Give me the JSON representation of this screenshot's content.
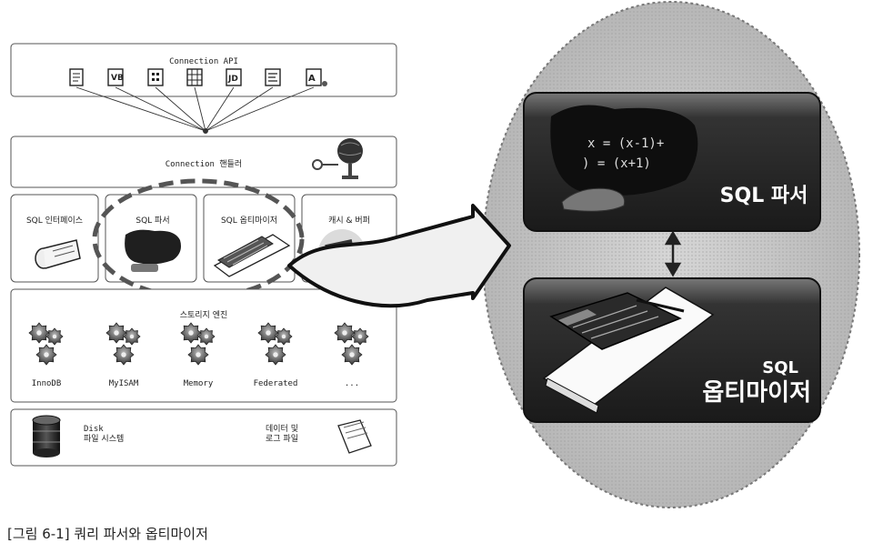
{
  "architecture": {
    "connection_api": {
      "title": "Connection API",
      "clients": [
        "document-icon",
        "vb-icon",
        "building-icon",
        "grid-icon",
        "jdbc-icon",
        "script-icon",
        "app-icon"
      ]
    },
    "connection_handler": {
      "title": "Connection 핸들러"
    },
    "sql_layer": {
      "interface": "SQL 인터페이스",
      "parser": "SQL 파서",
      "optimizer": "SQL 옵티마이저",
      "cache": "캐시 & 버퍼"
    },
    "storage_engine": {
      "title": "스토리지 엔진",
      "engines": [
        "InnoDB",
        "MyISAM",
        "Memory",
        "Federated",
        "..."
      ]
    },
    "disk": {
      "fs_label_1": "Disk",
      "fs_label_2": "파일 시스템",
      "files_label_1": "데이터 및",
      "files_label_2": "로그 파일"
    }
  },
  "zoom": {
    "parser_title": "SQL 파서",
    "optimizer_title_1": "SQL",
    "optimizer_title_2": "옵티마이저",
    "formula_1": "x = (x-1)+",
    "formula_2": ") = (x+1)"
  },
  "caption": "[그림 6-1] 쿼리 파서와 옵티마이저",
  "colors": {
    "zoom_circle": "#c8c8c8",
    "panel_dark": "#222222",
    "panel_gradient": "#6a6a6a",
    "outline": "#444444"
  }
}
